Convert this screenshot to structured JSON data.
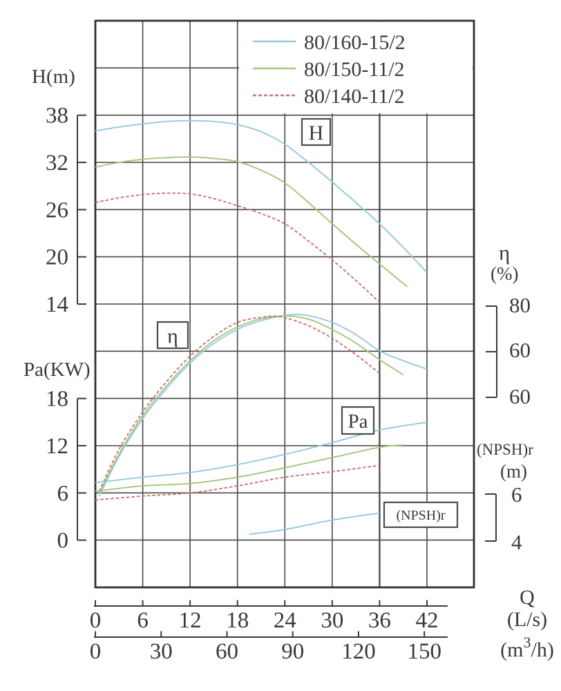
{
  "legend": {
    "items": [
      {
        "label": "80/160-15/2",
        "color": "#94c9de",
        "dash": null
      },
      {
        "label": "80/150-11/2",
        "color": "#a2c87c",
        "dash": null
      },
      {
        "label": "80/140-11/2",
        "color": "#cd6f6f",
        "dash": "5,3"
      }
    ]
  },
  "axes": {
    "head": {
      "label": "H(m)",
      "ticks": [
        "38",
        "32",
        "26",
        "20",
        "14"
      ]
    },
    "power": {
      "label": "Pa(KW)",
      "ticks": [
        "18",
        "12",
        "6",
        "0"
      ]
    },
    "efficiency": {
      "label": "η",
      "unit": "(%)",
      "ticks": [
        "80",
        "60",
        "60"
      ]
    },
    "npsh": {
      "label": "(NPSH)r",
      "unit": "(m)",
      "ticks": [
        "6",
        "4"
      ]
    },
    "flow_ls": {
      "label": "Q",
      "unit": "(L/s)",
      "ticks": [
        "0",
        "6",
        "12",
        "18",
        "24",
        "30",
        "36",
        "42"
      ]
    },
    "flow_m3h": {
      "unit_pre": "(m",
      "unit_sup": "3",
      "unit_post": "/h)",
      "ticks": [
        "0",
        "30",
        "60",
        "90",
        "120",
        "150"
      ]
    }
  },
  "annotations": [
    {
      "id": "H",
      "text": "H"
    },
    {
      "id": "eta",
      "text": "η"
    },
    {
      "id": "Pa",
      "text": "Pa"
    },
    {
      "id": "NPSH",
      "text": "(NPSH)r"
    }
  ],
  "chart_data": {
    "type": "line",
    "title": "Pump performance curves",
    "x_axis": {
      "label": "Q",
      "units": [
        "L/s",
        "m3/h"
      ],
      "ls_ticks": [
        0,
        6,
        12,
        18,
        24,
        30,
        36,
        42
      ],
      "m3h_ticks": [
        0,
        30,
        60,
        90,
        120,
        150
      ],
      "grid_range_ls": [
        0,
        48
      ],
      "m3h_per_ls": 3.6
    },
    "y_axes": {
      "H": {
        "label": "H(m)",
        "tick_values": [
          38,
          32,
          26,
          20,
          14
        ]
      },
      "Pa": {
        "label": "Pa(KW)",
        "tick_values": [
          18,
          12,
          6,
          0
        ]
      },
      "eta": {
        "label": "η(%)",
        "tick_labels_as_printed": [
          80,
          60,
          60
        ],
        "bracket_range": [
          80,
          60
        ]
      },
      "NPSH": {
        "label": "(NPSH)r(m)",
        "tick_values": [
          6,
          4
        ]
      }
    },
    "grid": "on",
    "legend_position": "top-right-inside",
    "series": [
      {
        "name": "80/160-15/2 H",
        "model": "80/160-15/2",
        "family": "H",
        "color": "#94c9de",
        "dashed": false,
        "points": [
          [
            0,
            36
          ],
          [
            3,
            36.5
          ],
          [
            6,
            36.9
          ],
          [
            9,
            37.2
          ],
          [
            12,
            37.3
          ],
          [
            15,
            37.2
          ],
          [
            18,
            36.8
          ],
          [
            21,
            35.9
          ],
          [
            24,
            34.3
          ],
          [
            27,
            32
          ],
          [
            30,
            29.5
          ],
          [
            33,
            26.9
          ],
          [
            36,
            24.2
          ],
          [
            39,
            21.2
          ],
          [
            42,
            18
          ]
        ]
      },
      {
        "name": "80/150-11/2 H",
        "model": "80/150-11/2",
        "family": "H",
        "color": "#a2c87c",
        "dashed": false,
        "points": [
          [
            0,
            31.4
          ],
          [
            3,
            32
          ],
          [
            6,
            32.4
          ],
          [
            9,
            32.6
          ],
          [
            12,
            32.7
          ],
          [
            15,
            32.5
          ],
          [
            18,
            32.1
          ],
          [
            21,
            31
          ],
          [
            24,
            29.4
          ],
          [
            27,
            26.9
          ],
          [
            30,
            24.2
          ],
          [
            33,
            21.6
          ],
          [
            36,
            19.1
          ],
          [
            39.5,
            16.2
          ]
        ]
      },
      {
        "name": "80/140-11/2 H",
        "model": "80/140-11/2",
        "family": "H",
        "color": "#cd6f6f",
        "dashed": true,
        "points": [
          [
            0,
            26.9
          ],
          [
            3,
            27.5
          ],
          [
            6,
            27.9
          ],
          [
            9,
            28.1
          ],
          [
            12,
            28
          ],
          [
            15,
            27.4
          ],
          [
            18,
            26.5
          ],
          [
            21,
            25.5
          ],
          [
            24,
            24.2
          ],
          [
            27,
            22
          ],
          [
            30,
            19.6
          ],
          [
            33,
            17
          ],
          [
            36,
            14.2
          ]
        ]
      },
      {
        "name": "80/160-15/2 η",
        "model": "80/160-15/2",
        "family": "eta",
        "color": "#94c9de",
        "dashed": false,
        "points": [
          [
            0.5,
            39
          ],
          [
            3,
            47.5
          ],
          [
            6,
            55.6
          ],
          [
            9,
            62
          ],
          [
            12,
            67.5
          ],
          [
            15,
            71.7
          ],
          [
            18,
            74.7
          ],
          [
            21,
            76.6
          ],
          [
            24,
            77.7
          ],
          [
            26.5,
            77.8
          ],
          [
            30,
            76.2
          ],
          [
            33,
            73.6
          ],
          [
            36,
            70.1
          ],
          [
            39,
            68
          ],
          [
            42,
            66.2
          ]
        ]
      },
      {
        "name": "80/150-11/2 η",
        "model": "80/150-11/2",
        "family": "eta",
        "color": "#a2c87c",
        "dashed": false,
        "points": [
          [
            0.5,
            39.5
          ],
          [
            3,
            48
          ],
          [
            6,
            56.2
          ],
          [
            9,
            62.6
          ],
          [
            12,
            68
          ],
          [
            15,
            72.3
          ],
          [
            18,
            75.2
          ],
          [
            21,
            77
          ],
          [
            24,
            77.6
          ],
          [
            27,
            76.9
          ],
          [
            30,
            74.7
          ],
          [
            33,
            71.8
          ],
          [
            36,
            68.2
          ],
          [
            39,
            65
          ]
        ]
      },
      {
        "name": "80/140-11/2 η",
        "model": "80/140-11/2",
        "family": "eta",
        "color": "#cd6f6f",
        "dashed": true,
        "points": [
          [
            0.5,
            40
          ],
          [
            3,
            49
          ],
          [
            6,
            57
          ],
          [
            9,
            63.5
          ],
          [
            12,
            69
          ],
          [
            15,
            73.2
          ],
          [
            18,
            76.2
          ],
          [
            21,
            77.3
          ],
          [
            23.5,
            77.4
          ],
          [
            27,
            75.5
          ],
          [
            30,
            72.8
          ],
          [
            33,
            69.3
          ],
          [
            36,
            65.3
          ]
        ]
      },
      {
        "name": "80/160-15/2 Pa",
        "model": "80/160-15/2",
        "family": "Pa",
        "color": "#94c9de",
        "dashed": false,
        "points": [
          [
            0,
            7.3
          ],
          [
            6,
            8
          ],
          [
            12,
            8.6
          ],
          [
            18,
            9.6
          ],
          [
            24,
            10.9
          ],
          [
            30,
            12.4
          ],
          [
            36,
            14
          ],
          [
            42,
            15
          ]
        ]
      },
      {
        "name": "80/150-11/2 Pa",
        "model": "80/150-11/2",
        "family": "Pa",
        "color": "#a2c87c",
        "dashed": false,
        "points": [
          [
            0,
            6.2
          ],
          [
            6,
            6.9
          ],
          [
            12,
            7.2
          ],
          [
            18,
            8
          ],
          [
            24,
            9.2
          ],
          [
            30,
            10.5
          ],
          [
            36,
            11.8
          ],
          [
            39,
            12.1
          ]
        ]
      },
      {
        "name": "80/140-11/2 Pa",
        "model": "80/140-11/2",
        "family": "Pa",
        "color": "#cd6f6f",
        "dashed": true,
        "points": [
          [
            0,
            5.1
          ],
          [
            6,
            5.6
          ],
          [
            12,
            6
          ],
          [
            18,
            6.9
          ],
          [
            24,
            8
          ],
          [
            30,
            8.7
          ],
          [
            36,
            9.5
          ]
        ]
      },
      {
        "name": "80/160-15/2 NPSH",
        "model": "80/160-15/2",
        "family": "NPSH",
        "color": "#94c9de",
        "dashed": false,
        "points": [
          [
            19.5,
            4.25
          ],
          [
            24,
            4.45
          ],
          [
            30,
            4.85
          ],
          [
            36,
            5.15
          ]
        ]
      }
    ]
  },
  "colors": {
    "grid": "#474747",
    "frame": "#303030",
    "text": "#3a3a3a",
    "background": "#ffffff"
  }
}
